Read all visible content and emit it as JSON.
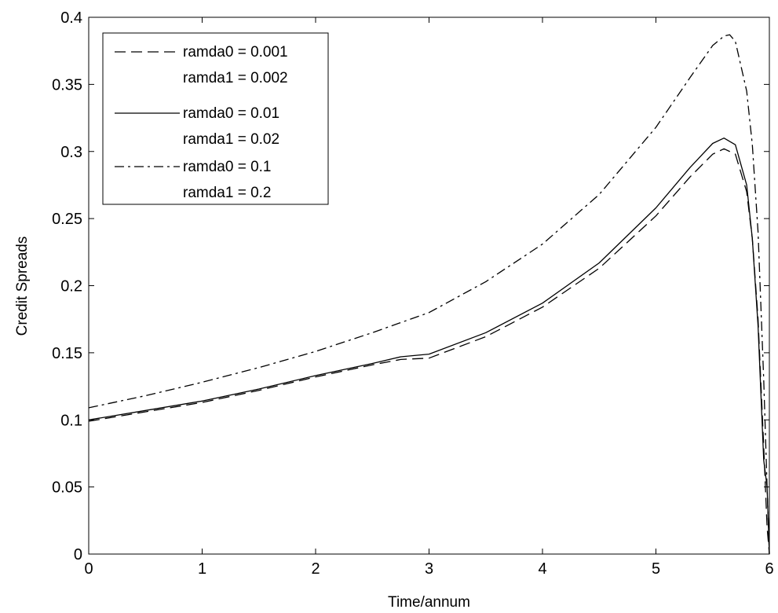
{
  "chart_data": {
    "type": "line",
    "title": "",
    "xlabel": "Time/annum",
    "ylabel": "Credit Spreads",
    "xlim": [
      0,
      6
    ],
    "ylim": [
      0,
      0.4
    ],
    "xticks": [
      0,
      1,
      2,
      3,
      4,
      5,
      6
    ],
    "xtick_labels": [
      "0",
      "1",
      "2",
      "3",
      "4",
      "5",
      "6"
    ],
    "yticks": [
      0,
      0.05,
      0.1,
      0.15,
      0.2,
      0.25,
      0.3,
      0.35,
      0.4
    ],
    "ytick_labels": [
      "0",
      "0.05",
      "0.1",
      "0.15",
      "0.2",
      "0.25",
      "0.3",
      "0.35",
      "0.4"
    ],
    "grid": false,
    "legend_position": "top-left",
    "series": [
      {
        "name": "ramda0 = 0.001",
        "name_line2": "ramda1 = 0.002",
        "line_style": "dashed",
        "color": "#000000",
        "x": [
          0,
          0.5,
          1,
          1.5,
          2,
          2.5,
          2.75,
          3,
          3.5,
          4,
          4.5,
          5,
          5.3,
          5.5,
          5.6,
          5.7,
          5.8,
          5.85,
          5.9,
          5.95,
          5.98,
          6
        ],
        "y": [
          0.099,
          0.106,
          0.113,
          0.122,
          0.132,
          0.141,
          0.145,
          0.146,
          0.162,
          0.184,
          0.213,
          0.252,
          0.281,
          0.298,
          0.302,
          0.298,
          0.27,
          0.235,
          0.175,
          0.08,
          0.02,
          0.0
        ]
      },
      {
        "name": "ramda0 = 0.01",
        "name_line2": "ramda1 = 0.02",
        "line_style": "solid",
        "color": "#000000",
        "x": [
          0,
          0.5,
          1,
          1.5,
          2,
          2.5,
          2.75,
          3,
          3.5,
          4,
          4.5,
          5,
          5.3,
          5.5,
          5.6,
          5.7,
          5.8,
          5.85,
          5.9,
          5.95,
          5.98,
          6
        ],
        "y": [
          0.1,
          0.107,
          0.114,
          0.123,
          0.133,
          0.142,
          0.147,
          0.149,
          0.165,
          0.187,
          0.217,
          0.258,
          0.288,
          0.306,
          0.31,
          0.305,
          0.275,
          0.235,
          0.17,
          0.07,
          0.05,
          0.0
        ]
      },
      {
        "name": "ramda0 = 0.1",
        "name_line2": "ramda1 = 0.2",
        "line_style": "dash-dot",
        "color": "#000000",
        "x": [
          0,
          0.5,
          1,
          1.5,
          2,
          2.5,
          3,
          3.5,
          4,
          4.5,
          5,
          5.3,
          5.5,
          5.6,
          5.65,
          5.7,
          5.8,
          5.85,
          5.9,
          5.95,
          5.98,
          6
        ],
        "y": [
          0.109,
          0.118,
          0.128,
          0.139,
          0.151,
          0.165,
          0.18,
          0.203,
          0.231,
          0.268,
          0.318,
          0.355,
          0.379,
          0.386,
          0.387,
          0.382,
          0.345,
          0.305,
          0.24,
          0.13,
          0.05,
          0.0
        ]
      }
    ]
  }
}
